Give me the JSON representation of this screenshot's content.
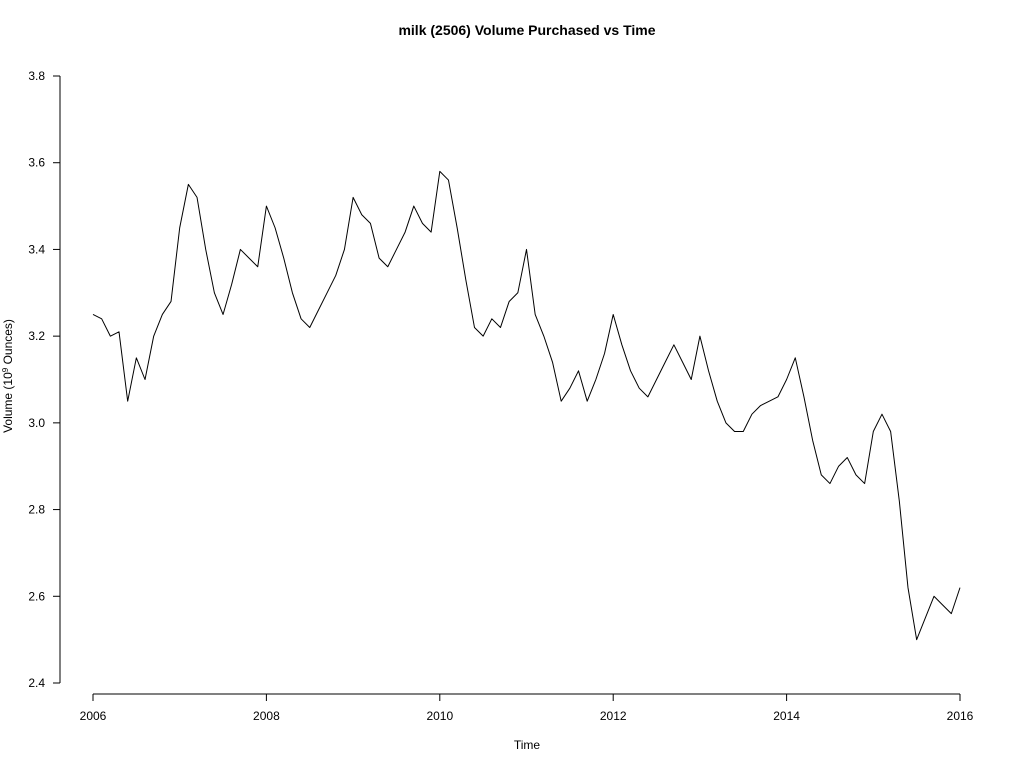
{
  "chart_data": {
    "type": "line",
    "title": "milk (2506) Volume Purchased vs Time",
    "xlabel": "Time",
    "ylabel_prefix": "Volume (10",
    "ylabel_exponent": "9",
    "ylabel_suffix": " Ounces)",
    "xlim": [
      2006,
      2016
    ],
    "ylim": [
      2.4,
      3.8
    ],
    "x_ticks": [
      2006,
      2008,
      2010,
      2012,
      2014,
      2016
    ],
    "y_ticks": [
      2.4,
      2.6,
      2.8,
      3.0,
      3.2,
      3.4,
      3.6,
      3.8
    ],
    "x_tick_labels": [
      "2006",
      "2008",
      "2010",
      "2012",
      "2014",
      "2016"
    ],
    "y_tick_labels": [
      "2.4",
      "2.6",
      "2.8",
      "3.0",
      "3.2",
      "3.4",
      "3.6",
      "3.8"
    ],
    "grid": false,
    "series": [
      {
        "color": "#000000",
        "x": [
          2006.0,
          2006.1,
          2006.2,
          2006.3,
          2006.4,
          2006.5,
          2006.6,
          2006.7,
          2006.8,
          2006.9,
          2007.0,
          2007.1,
          2007.2,
          2007.3,
          2007.4,
          2007.5,
          2007.6,
          2007.7,
          2007.8,
          2007.9,
          2008.0,
          2008.1,
          2008.2,
          2008.3,
          2008.4,
          2008.5,
          2008.6,
          2008.7,
          2008.8,
          2008.9,
          2009.0,
          2009.1,
          2009.2,
          2009.3,
          2009.4,
          2009.5,
          2009.6,
          2009.7,
          2009.8,
          2009.9,
          2010.0,
          2010.1,
          2010.2,
          2010.3,
          2010.4,
          2010.5,
          2010.6,
          2010.7,
          2010.8,
          2010.9,
          2011.0,
          2011.1,
          2011.2,
          2011.3,
          2011.4,
          2011.5,
          2011.6,
          2011.7,
          2011.8,
          2011.9,
          2012.0,
          2012.1,
          2012.2,
          2012.3,
          2012.4,
          2012.5,
          2012.6,
          2012.7,
          2012.8,
          2012.9,
          2013.0,
          2013.1,
          2013.2,
          2013.3,
          2013.4,
          2013.5,
          2013.6,
          2013.7,
          2013.8,
          2013.9,
          2014.0,
          2014.1,
          2014.2,
          2014.3,
          2014.4,
          2014.5,
          2014.6,
          2014.7,
          2014.8,
          2014.9,
          2015.0,
          2015.1,
          2015.2,
          2015.3,
          2015.4,
          2015.5,
          2015.6,
          2015.7,
          2015.8,
          2015.9,
          2016.0
        ],
        "y": [
          3.25,
          3.24,
          3.2,
          3.21,
          3.05,
          3.15,
          3.1,
          3.2,
          3.25,
          3.28,
          3.45,
          3.55,
          3.52,
          3.4,
          3.3,
          3.25,
          3.32,
          3.4,
          3.38,
          3.36,
          3.5,
          3.45,
          3.38,
          3.3,
          3.24,
          3.22,
          3.26,
          3.3,
          3.34,
          3.4,
          3.52,
          3.48,
          3.46,
          3.38,
          3.36,
          3.4,
          3.44,
          3.5,
          3.46,
          3.44,
          3.58,
          3.56,
          3.45,
          3.33,
          3.22,
          3.2,
          3.24,
          3.22,
          3.28,
          3.3,
          3.4,
          3.25,
          3.2,
          3.14,
          3.05,
          3.08,
          3.12,
          3.05,
          3.1,
          3.16,
          3.25,
          3.18,
          3.12,
          3.08,
          3.06,
          3.1,
          3.14,
          3.18,
          3.14,
          3.1,
          3.2,
          3.12,
          3.05,
          3.0,
          2.98,
          2.98,
          3.02,
          3.04,
          3.05,
          3.06,
          3.1,
          3.15,
          3.06,
          2.96,
          2.88,
          2.86,
          2.9,
          2.92,
          2.88,
          2.86,
          2.98,
          3.02,
          2.98,
          2.82,
          2.62,
          2.5,
          2.55,
          2.6,
          2.58,
          2.56,
          2.62
        ]
      }
    ]
  }
}
